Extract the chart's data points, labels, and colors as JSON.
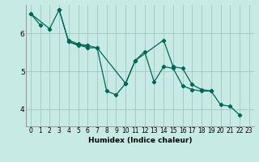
{
  "xlabel": "Humidex (Indice chaleur)",
  "bg_color": "#c8eae4",
  "grid_color": "#a0c8c0",
  "line_color": "#006655",
  "xlim": [
    -0.5,
    23.5
  ],
  "ylim": [
    3.55,
    6.75
  ],
  "yticks": [
    4,
    5,
    6
  ],
  "xticks": [
    0,
    1,
    2,
    3,
    4,
    5,
    6,
    7,
    8,
    9,
    10,
    11,
    12,
    13,
    14,
    15,
    16,
    17,
    18,
    19,
    20,
    21,
    22,
    23
  ],
  "series": [
    {
      "x": [
        0,
        1
      ],
      "y": [
        6.52,
        6.22
      ]
    },
    {
      "x": [
        0,
        2,
        3,
        4,
        5,
        6,
        7,
        8,
        9,
        10,
        11,
        12,
        13,
        14,
        15,
        16,
        17,
        18,
        19,
        20,
        21,
        22
      ],
      "y": [
        6.52,
        6.12,
        6.62,
        5.78,
        5.68,
        5.68,
        5.62,
        4.48,
        4.38,
        4.68,
        5.28,
        5.52,
        4.72,
        5.12,
        5.08,
        4.62,
        4.52,
        4.48,
        4.48,
        4.12,
        4.08,
        3.85
      ]
    },
    {
      "x": [
        3,
        4,
        6,
        7,
        10,
        11,
        14,
        15,
        16,
        17,
        18,
        19
      ],
      "y": [
        6.62,
        5.78,
        5.62,
        5.62,
        4.68,
        5.28,
        5.82,
        5.12,
        5.08,
        4.65,
        4.52,
        4.48
      ]
    },
    {
      "x": [
        4,
        5,
        6
      ],
      "y": [
        5.82,
        5.72,
        5.68
      ]
    }
  ]
}
